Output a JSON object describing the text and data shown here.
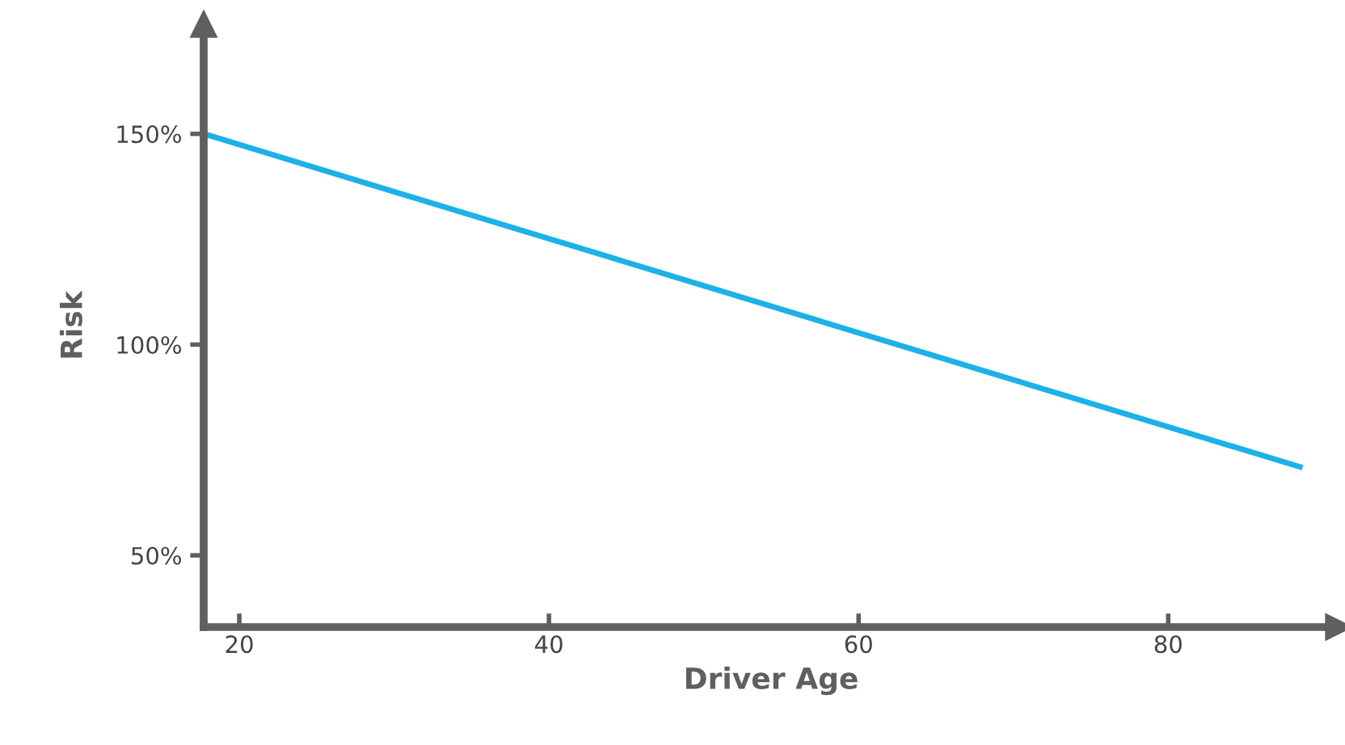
{
  "chart_data": {
    "type": "line",
    "xlabel": "Driver Age",
    "ylabel": "Risk",
    "series": [
      {
        "color": "#1cb1e8",
        "x": [
          17.7,
          88.5
        ],
        "values": [
          150,
          71
        ]
      }
    ],
    "xlim": [
      17.7,
      91
    ],
    "xticks": [
      20,
      40,
      60,
      80
    ],
    "ylim": [
      33,
      176
    ],
    "yticks": [
      {
        "value": 50,
        "label": "50%"
      },
      {
        "value": 100,
        "label": "100%"
      },
      {
        "value": 150,
        "label": "150%"
      }
    ],
    "grid": false,
    "marker": "none",
    "line_style": "solid"
  }
}
